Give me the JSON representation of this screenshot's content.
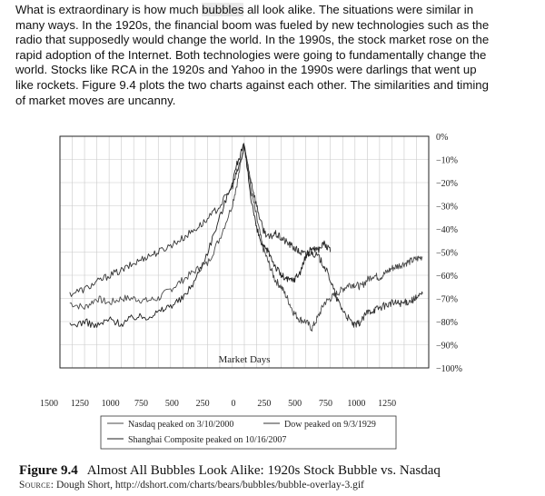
{
  "paragraph": {
    "line1_pre": "What is extraordinary is how much ",
    "line1_hl": "bubbles",
    "line1_post": " all look alike. The situations were similar in",
    "line2": "many ways. In the 1920s, the financial boom was fueled by new technologies such as the",
    "line3": "radio that supposedly would change the world. In the 1990s, the stock market rose on the",
    "line4": "rapid adoption of the Internet. Both technologies were going to fundamentally change the",
    "line5": "world. Stocks like RCA in the 1920s and Yahoo in the 1990s were darlings that went up",
    "line6": "like rockets. Figure 9.4 plots the two charts against each other. The similarities and timing",
    "line7": "of market moves are uncanny."
  },
  "figure": {
    "number": "Figure 9.4",
    "title": "Almost All Bubbles Look Alike: 1920s Stock Bubble vs. Nasdaq",
    "source_label": "Source:",
    "source_text": " Dough Short, http://dshort.com/charts/bears/bubbles/bubble-overlay-3.gif"
  },
  "chart_data": {
    "type": "line",
    "xlabel": "Market Days",
    "x_ticks": [
      "1500",
      "1250",
      "1000",
      "750",
      "500",
      "250",
      "0",
      "250",
      "500",
      "750",
      "1000",
      "1250"
    ],
    "y_ticks": [
      "0%",
      "−10%",
      "−20%",
      "−30%",
      "−40%",
      "−50%",
      "−60%",
      "−70%",
      "−80%",
      "−90%",
      "−100%"
    ],
    "xlim": [
      -1500,
      1500
    ],
    "ylim": [
      -100,
      0
    ],
    "grid": true,
    "legend_position": "bottom",
    "legend": [
      "Nasdaq peaked on 3/10/2000",
      "Dow peaked on 9/3/1929",
      "Shanghai Composite peaked on 10/16/2007"
    ],
    "series": [
      {
        "name": "Nasdaq peaked on 3/10/2000",
        "color": "#4a4a4a",
        "x": [
          -1420,
          -1300,
          -1200,
          -1100,
          -1000,
          -900,
          -800,
          -700,
          -600,
          -500,
          -400,
          -300,
          -200,
          -100,
          -50,
          0,
          50,
          100,
          150,
          200,
          250,
          300,
          350,
          400,
          450,
          500,
          550,
          600,
          650,
          700,
          750,
          800,
          850,
          900,
          950,
          1000,
          1050,
          1100,
          1150,
          1200,
          1250,
          1300,
          1350,
          1400,
          1450
        ],
        "y": [
          -72,
          -74,
          -70,
          -72,
          -70,
          -70,
          -71,
          -70,
          -66,
          -62,
          -58,
          -55,
          -44,
          -30,
          -18,
          -3,
          -22,
          -35,
          -48,
          -55,
          -62,
          -65,
          -70,
          -76,
          -79,
          -80,
          -83,
          -78,
          -72,
          -70,
          -68,
          -66,
          -64,
          -64,
          -65,
          -62,
          -60,
          -61,
          -59,
          -57,
          -56,
          -55,
          -54,
          -53,
          -52
        ]
      },
      {
        "name": "Dow peaked on 9/3/1929",
        "color": "#333333",
        "x": [
          -1420,
          -1300,
          -1200,
          -1100,
          -1000,
          -900,
          -800,
          -700,
          -600,
          -500,
          -400,
          -300,
          -200,
          -100,
          -50,
          0,
          50,
          100,
          150,
          200,
          250,
          300,
          350,
          400,
          450,
          500,
          550,
          600,
          650,
          700,
          750,
          800,
          850,
          900,
          950,
          1000,
          1050,
          1100,
          1150,
          1200,
          1250,
          1300,
          1350,
          1400,
          1450
        ],
        "y": [
          -68,
          -66,
          -63,
          -60,
          -58,
          -55,
          -52,
          -50,
          -47,
          -44,
          -40,
          -36,
          -30,
          -22,
          -14,
          -5,
          -18,
          -30,
          -40,
          -44,
          -42,
          -44,
          -46,
          -48,
          -50,
          -51,
          -50,
          -52,
          -56,
          -62,
          -70,
          -75,
          -79,
          -82,
          -80,
          -76,
          -75,
          -74,
          -73,
          -72,
          -72,
          -72,
          -71,
          -70,
          -68
        ]
      },
      {
        "name": "Shanghai Composite peaked on 10/16/2007",
        "color": "#1f1f1f",
        "x": [
          -1420,
          -1300,
          -1200,
          -1100,
          -1000,
          -900,
          -800,
          -700,
          -600,
          -500,
          -400,
          -300,
          -200,
          -100,
          -50,
          0,
          50,
          100,
          150,
          200,
          250,
          300,
          350,
          400,
          450,
          500,
          550,
          600,
          650,
          700
        ],
        "y": [
          -82,
          -80,
          -82,
          -79,
          -81,
          -78,
          -78,
          -76,
          -73,
          -70,
          -62,
          -50,
          -35,
          -20,
          -10,
          -4,
          -25,
          -40,
          -48,
          -50,
          -56,
          -60,
          -62,
          -62,
          -59,
          -52,
          -48,
          -49,
          -46,
          -50
        ]
      }
    ]
  }
}
